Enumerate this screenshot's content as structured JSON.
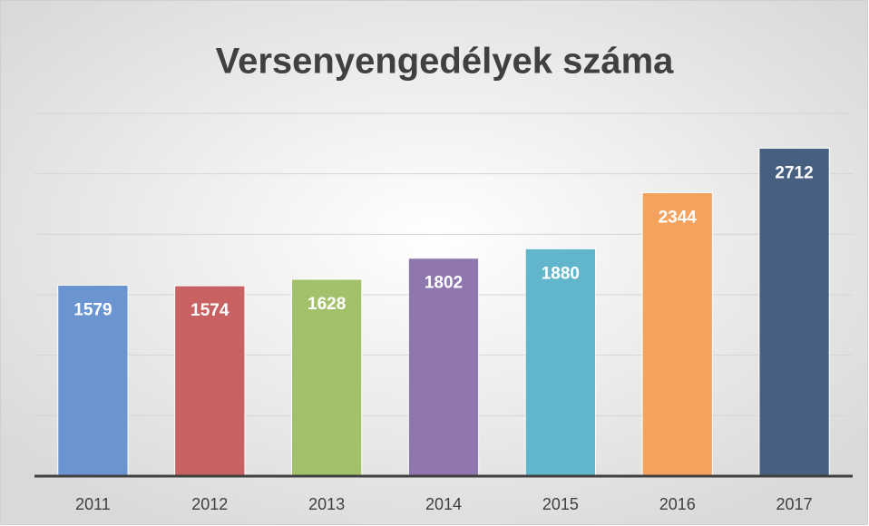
{
  "chart_data": {
    "type": "bar",
    "title": "Versenyengedélyek száma",
    "categories": [
      "2011",
      "2012",
      "2013",
      "2014",
      "2015",
      "2016",
      "2017"
    ],
    "values": [
      1579,
      1574,
      1628,
      1802,
      1880,
      2344,
      2712
    ],
    "colors": [
      "#6a95d0",
      "#c86262",
      "#a3c06b",
      "#8f76ae",
      "#62b6cc",
      "#f5a25f",
      "#475f80"
    ],
    "ylim": [
      0,
      3000
    ],
    "yticks": [
      0,
      500,
      1000,
      1500,
      2000,
      2500,
      3000
    ],
    "grid": true
  }
}
